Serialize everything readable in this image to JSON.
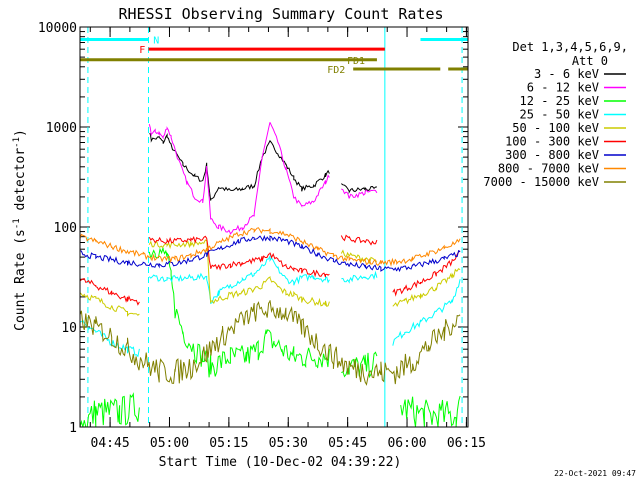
{
  "chart_data": {
    "type": "line",
    "title": "RHESSI Observing Summary Count Rates",
    "xlabel": "Start Time (10-Dec-02 04:39:22)",
    "ylabel_main": "Count Rate (s",
    "ylabel_sup1": "-1",
    "ylabel_mid": " detector",
    "ylabel_sup2": "-1",
    "ylabel_end": ")",
    "xlim": [
      -2,
      96
    ],
    "ylim": [
      1,
      10000
    ],
    "yscale": "log",
    "x_ticks": [
      {
        "t": 5.6,
        "label": "04:45"
      },
      {
        "t": 20.6,
        "label": "05:00"
      },
      {
        "t": 35.6,
        "label": "05:15"
      },
      {
        "t": 50.6,
        "label": "05:30"
      },
      {
        "t": 65.6,
        "label": "05:45"
      },
      {
        "t": 80.6,
        "label": "06:00"
      },
      {
        "t": 95.6,
        "label": "06:15"
      }
    ],
    "y_ticks": [
      {
        "v": 1,
        "label": "1"
      },
      {
        "v": 10,
        "label": "10"
      },
      {
        "v": 100,
        "label": "100"
      },
      {
        "v": 1000,
        "label": "1000"
      },
      {
        "v": 10000,
        "label": "10000"
      }
    ],
    "legend_header": [
      "Det 1,3,4,5,6,9,",
      "Att 0"
    ],
    "legend_position": "right",
    "series": [
      {
        "name": "3 - 6 keV",
        "color": "#000000",
        "points": [
          [
            14,
            null
          ],
          [
            15.5,
            900
          ],
          [
            16,
            750
          ],
          [
            18,
            780
          ],
          [
            19,
            700
          ],
          [
            20,
            820
          ],
          [
            21,
            650
          ],
          [
            24,
            420
          ],
          [
            27,
            320
          ],
          [
            29,
            290
          ],
          [
            30,
            420
          ],
          [
            31,
            180
          ],
          [
            33,
            250
          ],
          [
            36,
            230
          ],
          [
            39,
            240
          ],
          [
            42,
            260
          ],
          [
            44,
            500
          ],
          [
            46,
            700
          ],
          [
            48,
            550
          ],
          [
            50,
            420
          ],
          [
            52,
            310
          ],
          [
            54,
            240
          ],
          [
            57,
            260
          ],
          [
            60,
            330
          ],
          [
            61,
            360
          ],
          [
            62,
            null
          ],
          [
            64,
            260
          ],
          [
            66,
            230
          ],
          [
            70,
            240
          ],
          [
            73,
            240
          ]
        ]
      },
      {
        "name": "6 - 12 keV",
        "color": "#ff00ff",
        "points": [
          [
            14,
            null
          ],
          [
            15.5,
            1100
          ],
          [
            16,
            850
          ],
          [
            17,
            900
          ],
          [
            18,
            870
          ],
          [
            19,
            780
          ],
          [
            20,
            1000
          ],
          [
            21,
            800
          ],
          [
            23,
            450
          ],
          [
            25,
            280
          ],
          [
            27,
            200
          ],
          [
            29,
            180
          ],
          [
            30,
            400
          ],
          [
            31,
            120
          ],
          [
            33,
            100
          ],
          [
            36,
            90
          ],
          [
            39,
            100
          ],
          [
            42,
            130
          ],
          [
            44,
            500
          ],
          [
            46,
            1100
          ],
          [
            48,
            700
          ],
          [
            50,
            380
          ],
          [
            52,
            200
          ],
          [
            54,
            160
          ],
          [
            57,
            180
          ],
          [
            60,
            280
          ],
          [
            61,
            330
          ],
          [
            62,
            null
          ],
          [
            64,
            250
          ],
          [
            66,
            200
          ],
          [
            70,
            220
          ],
          [
            73,
            230
          ],
          [
            74,
            null
          ]
        ]
      },
      {
        "name": "12 - 25 keV",
        "color": "#00ff00",
        "points": [
          [
            -2,
            1
          ],
          [
            2,
            1.4
          ],
          [
            8,
            1.4
          ],
          [
            13,
            1.6
          ],
          [
            14,
            null
          ],
          [
            15.5,
            55
          ],
          [
            17,
            60
          ],
          [
            19,
            55
          ],
          [
            20,
            52
          ],
          [
            21,
            30
          ],
          [
            22,
            15
          ],
          [
            24,
            9
          ],
          [
            27,
            6
          ],
          [
            29,
            5
          ],
          [
            31,
            4
          ],
          [
            36,
            5
          ],
          [
            40,
            5
          ],
          [
            43,
            6
          ],
          [
            45,
            8
          ],
          [
            47,
            7
          ],
          [
            49,
            6
          ],
          [
            52,
            5
          ],
          [
            55,
            5
          ],
          [
            58,
            5
          ],
          [
            61,
            5
          ],
          [
            62,
            null
          ],
          [
            64,
            4
          ],
          [
            66,
            4
          ],
          [
            70,
            4
          ],
          [
            73,
            4.5
          ],
          [
            74,
            null
          ],
          [
            79,
            1.6
          ],
          [
            85,
            1.3
          ],
          [
            93,
            1.3
          ],
          [
            94,
            1.6
          ]
        ]
      },
      {
        "name": "25 - 50 keV",
        "color": "#00ffff",
        "points": [
          [
            -2,
            12
          ],
          [
            2,
            9
          ],
          [
            6,
            7
          ],
          [
            10,
            6
          ],
          [
            13,
            5.5
          ],
          [
            14,
            null
          ],
          [
            15.5,
            32
          ],
          [
            20,
            30
          ],
          [
            26,
            31
          ],
          [
            30,
            32
          ],
          [
            31,
            18
          ],
          [
            33,
            22
          ],
          [
            36,
            26
          ],
          [
            39,
            30
          ],
          [
            42,
            34
          ],
          [
            44,
            40
          ],
          [
            46,
            48
          ],
          [
            48,
            38
          ],
          [
            50,
            30
          ],
          [
            52,
            28
          ],
          [
            54,
            31
          ],
          [
            57,
            32
          ],
          [
            60,
            30
          ],
          [
            61,
            30
          ],
          [
            62,
            null
          ],
          [
            64,
            30
          ],
          [
            66,
            30
          ],
          [
            70,
            32
          ],
          [
            73,
            33
          ],
          [
            74,
            null
          ],
          [
            77,
            7
          ],
          [
            80,
            9
          ],
          [
            84,
            11
          ],
          [
            88,
            14
          ],
          [
            92,
            18
          ],
          [
            94,
            30
          ]
        ]
      },
      {
        "name": "50 - 100 keV",
        "color": "#cccc00",
        "points": [
          [
            -2,
            22
          ],
          [
            2,
            19
          ],
          [
            6,
            16
          ],
          [
            10,
            14
          ],
          [
            13,
            13
          ],
          [
            14,
            null
          ],
          [
            15.5,
            68
          ],
          [
            20,
            66
          ],
          [
            26,
            68
          ],
          [
            30,
            70
          ],
          [
            31,
            18
          ],
          [
            33,
            19
          ],
          [
            36,
            21
          ],
          [
            39,
            22
          ],
          [
            42,
            24
          ],
          [
            44,
            26
          ],
          [
            46,
            30
          ],
          [
            48,
            25
          ],
          [
            50,
            22
          ],
          [
            52,
            21
          ],
          [
            54,
            19
          ],
          [
            57,
            18
          ],
          [
            60,
            17
          ],
          [
            61,
            17
          ],
          [
            62,
            null
          ],
          [
            64,
            55
          ],
          [
            66,
            52
          ],
          [
            70,
            48
          ],
          [
            73,
            45
          ],
          [
            74,
            null
          ],
          [
            77,
            16
          ],
          [
            80,
            18
          ],
          [
            84,
            21
          ],
          [
            88,
            25
          ],
          [
            92,
            32
          ],
          [
            94,
            40
          ]
        ]
      },
      {
        "name": "100 - 300 keV",
        "color": "#ff0000",
        "points": [
          [
            -2,
            30
          ],
          [
            2,
            26
          ],
          [
            6,
            22
          ],
          [
            10,
            19
          ],
          [
            13,
            18
          ],
          [
            14,
            null
          ],
          [
            15.5,
            75
          ],
          [
            20,
            72
          ],
          [
            26,
            74
          ],
          [
            30,
            76
          ],
          [
            31,
            39
          ],
          [
            33,
            40
          ],
          [
            36,
            42
          ],
          [
            39,
            44
          ],
          [
            42,
            46
          ],
          [
            44,
            48
          ],
          [
            46,
            54
          ],
          [
            48,
            46
          ],
          [
            50,
            40
          ],
          [
            52,
            38
          ],
          [
            54,
            36
          ],
          [
            57,
            35
          ],
          [
            60,
            34
          ],
          [
            61,
            34
          ],
          [
            62,
            null
          ],
          [
            64,
            80
          ],
          [
            66,
            76
          ],
          [
            70,
            72
          ],
          [
            73,
            70
          ],
          [
            74,
            null
          ],
          [
            77,
            22
          ],
          [
            80,
            24
          ],
          [
            84,
            28
          ],
          [
            88,
            34
          ],
          [
            92,
            45
          ],
          [
            94,
            55
          ]
        ]
      },
      {
        "name": "300 - 800 keV",
        "color": "#0000cc",
        "points": [
          [
            -2,
            55
          ],
          [
            2,
            50
          ],
          [
            6,
            47
          ],
          [
            10,
            44
          ],
          [
            14,
            43
          ],
          [
            18,
            42
          ],
          [
            22,
            43
          ],
          [
            26,
            47
          ],
          [
            30,
            53
          ],
          [
            34,
            62
          ],
          [
            38,
            72
          ],
          [
            42,
            78
          ],
          [
            46,
            78
          ],
          [
            50,
            73
          ],
          [
            54,
            63
          ],
          [
            58,
            54
          ],
          [
            62,
            46
          ],
          [
            66,
            42
          ],
          [
            70,
            40
          ],
          [
            74,
            38
          ],
          [
            78,
            38
          ],
          [
            82,
            40
          ],
          [
            86,
            44
          ],
          [
            90,
            48
          ],
          [
            94,
            55
          ]
        ]
      },
      {
        "name": "800 - 7000 keV",
        "color": "#ff8800",
        "points": [
          [
            -2,
            80
          ],
          [
            2,
            72
          ],
          [
            6,
            64
          ],
          [
            10,
            57
          ],
          [
            14,
            52
          ],
          [
            18,
            48
          ],
          [
            22,
            48
          ],
          [
            26,
            52
          ],
          [
            30,
            60
          ],
          [
            34,
            72
          ],
          [
            38,
            85
          ],
          [
            42,
            93
          ],
          [
            46,
            92
          ],
          [
            50,
            85
          ],
          [
            54,
            72
          ],
          [
            58,
            60
          ],
          [
            62,
            52
          ],
          [
            66,
            47
          ],
          [
            70,
            45
          ],
          [
            74,
            44
          ],
          [
            78,
            45
          ],
          [
            82,
            48
          ],
          [
            86,
            54
          ],
          [
            90,
            62
          ],
          [
            94,
            72
          ]
        ]
      },
      {
        "name": "7000 - 15000 keV",
        "color": "#808000",
        "points": [
          [
            -2,
            12
          ],
          [
            2,
            10
          ],
          [
            6,
            8
          ],
          [
            10,
            6
          ],
          [
            14,
            4.5
          ],
          [
            18,
            3.6
          ],
          [
            22,
            3.5
          ],
          [
            26,
            4
          ],
          [
            30,
            5.5
          ],
          [
            34,
            8
          ],
          [
            38,
            11
          ],
          [
            42,
            14
          ],
          [
            46,
            15
          ],
          [
            50,
            14
          ],
          [
            54,
            10
          ],
          [
            58,
            7
          ],
          [
            62,
            5
          ],
          [
            66,
            4
          ],
          [
            70,
            3.6
          ],
          [
            74,
            3.5
          ],
          [
            78,
            3.6
          ],
          [
            82,
            4.5
          ],
          [
            86,
            6.5
          ],
          [
            90,
            9
          ],
          [
            94,
            13
          ]
        ]
      }
    ],
    "vertical_lines": [
      {
        "t": 0,
        "color": "#00ffff",
        "style": "dashed"
      },
      {
        "t": 15.3,
        "color": "#00ffff",
        "style": "dashed"
      },
      {
        "t": 94.5,
        "color": "#00ffff",
        "style": "dashed"
      },
      {
        "t": 75,
        "color": "#00ffff",
        "style": "solid"
      }
    ],
    "flag_bars": [
      {
        "label": "N",
        "color": "#00ffff",
        "y": 7500,
        "segments": [
          [
            -2,
            15.3
          ],
          [
            84,
            96
          ]
        ],
        "label_t": 16.5,
        "label_y": 7500,
        "anchor": "start"
      },
      {
        "label": "F",
        "color": "#ff0000",
        "y": 6000,
        "segments": [
          [
            15.3,
            75
          ]
        ],
        "label_t": 14.5,
        "label_y": 6000,
        "anchor": "end"
      },
      {
        "label": "FD1",
        "color": "#808000",
        "y": 4700,
        "segments": [
          [
            -2,
            73
          ]
        ],
        "label_t": 70,
        "label_y": 4700,
        "anchor": "end"
      },
      {
        "label": "FD2",
        "color": "#808000",
        "y": 3800,
        "segments": [
          [
            67,
            89
          ],
          [
            91,
            96
          ]
        ],
        "label_t": 65,
        "label_y": 3800,
        "anchor": "end"
      }
    ]
  },
  "timestamp": "22-Oct-2021 09:47"
}
